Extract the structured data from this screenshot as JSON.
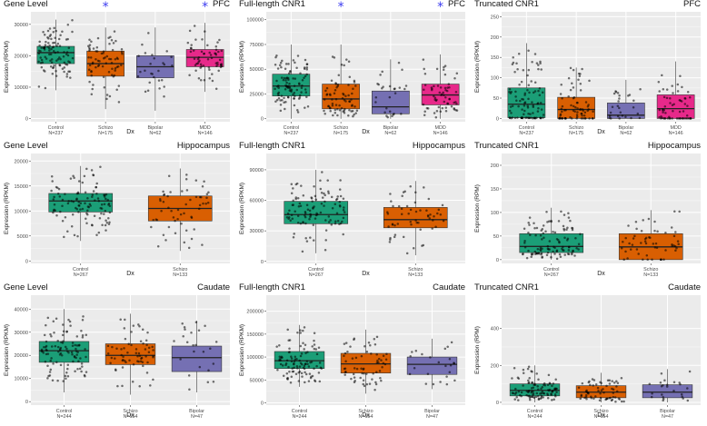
{
  "colors": {
    "panel_bg": "#ebebeb",
    "grid": "#ffffff",
    "point": "#000000",
    "asterisk": "#3a3af0",
    "Control": "#1b9e77",
    "Schizo": "#d95f02",
    "Bipolar": "#7570b3",
    "MDD": "#e7298a"
  },
  "ylabel_rpkm": "Expression (RPKM)",
  "ylabel_rpm": "Expression (RPM)",
  "xlabel": "Dx",
  "chart_data": [
    {
      "type": "box",
      "id": "pfc-gene",
      "title": "Gene Level",
      "region": "PFC",
      "ylabel": "Expression (RPKM)",
      "xlabel": "Dx",
      "ylim": [
        -1000,
        34000
      ],
      "yticks": [
        0,
        10000,
        20000,
        30000
      ],
      "ytick_labels": [
        "0",
        "10000",
        "20000",
        "30000"
      ],
      "groups": [
        {
          "name": "Control",
          "n_label": "N=237",
          "q1": 17500,
          "median": 21000,
          "q3": 23000,
          "lo": 9000,
          "hi": 31500,
          "sig": false
        },
        {
          "name": "Schizo",
          "n_label": "N=175",
          "q1": 13500,
          "median": 17500,
          "q3": 21500,
          "lo": 3000,
          "hi": 29000,
          "sig": true
        },
        {
          "name": "Bipolar",
          "n_label": "N=62",
          "q1": 13000,
          "median": 16500,
          "q3": 20000,
          "lo": 2500,
          "hi": 29000,
          "sig": false
        },
        {
          "name": "MDD",
          "n_label": "N=146",
          "q1": 16500,
          "median": 19500,
          "q3": 22000,
          "lo": 8500,
          "hi": 30500,
          "sig": true
        }
      ]
    },
    {
      "type": "box",
      "id": "pfc-full",
      "title": "Full-length CNR1",
      "region": "PFC",
      "ylabel": "Expression (RPKM)",
      "xlabel": "Dx",
      "ylim": [
        -3000,
        108000
      ],
      "yticks": [
        0,
        25000,
        50000,
        75000,
        100000
      ],
      "ytick_labels": [
        "0",
        "25000",
        "50000",
        "75000",
        "100000"
      ],
      "groups": [
        {
          "name": "Control",
          "n_label": "N=237",
          "q1": 23000,
          "median": 33000,
          "q3": 45000,
          "lo": 0,
          "hi": 75000,
          "sig": false
        },
        {
          "name": "Schizo",
          "n_label": "N=175",
          "q1": 10000,
          "median": 20000,
          "q3": 35000,
          "lo": 0,
          "hi": 75000,
          "sig": true
        },
        {
          "name": "Bipolar",
          "n_label": "N=62",
          "q1": 5000,
          "median": 12000,
          "q3": 28000,
          "lo": 0,
          "hi": 60000,
          "sig": false
        },
        {
          "name": "MDD",
          "n_label": "N=146",
          "q1": 14000,
          "median": 24000,
          "q3": 35000,
          "lo": 0,
          "hi": 65000,
          "sig": true
        }
      ]
    },
    {
      "type": "box",
      "id": "pfc-trunc",
      "title": "Truncated CNR1",
      "region": "PFC",
      "ylabel": "Expression (RPKM)",
      "xlabel": "Dx",
      "ylim": [
        -8,
        262
      ],
      "yticks": [
        0,
        50,
        100,
        150,
        200,
        250
      ],
      "ytick_labels": [
        "0",
        "50",
        "100",
        "150",
        "200",
        "250"
      ],
      "groups": [
        {
          "name": "Control",
          "n_label": "N=237",
          "q1": 2,
          "median": 35,
          "q3": 75,
          "lo": 0,
          "hi": 185,
          "sig": false
        },
        {
          "name": "Schizo",
          "n_label": "N=175",
          "q1": 0,
          "median": 22,
          "q3": 52,
          "lo": 0,
          "hi": 125,
          "sig": false
        },
        {
          "name": "Bipolar",
          "n_label": "N=62",
          "q1": 0,
          "median": 8,
          "q3": 38,
          "lo": 0,
          "hi": 95,
          "sig": false
        },
        {
          "name": "MDD",
          "n_label": "N=146",
          "q1": 0,
          "median": 24,
          "q3": 58,
          "lo": 0,
          "hi": 140,
          "sig": false
        }
      ]
    },
    {
      "type": "box",
      "id": "hip-gene",
      "title": "Gene Level",
      "region": "Hippocampus",
      "ylabel": "Expression (RPKM)",
      "xlabel": "Dx",
      "ylim": [
        -500,
        21500
      ],
      "yticks": [
        0,
        5000,
        10000,
        15000,
        20000
      ],
      "ytick_labels": [
        "0",
        "5000",
        "10000",
        "15000",
        "20000"
      ],
      "groups": [
        {
          "name": "Control",
          "n_label": "N=267",
          "q1": 9800,
          "median": 12000,
          "q3": 13500,
          "lo": 4000,
          "hi": 19000,
          "sig": false
        },
        {
          "name": "Schizo",
          "n_label": "N=133",
          "q1": 8000,
          "median": 10500,
          "q3": 13000,
          "lo": 2000,
          "hi": 18500,
          "sig": false
        }
      ]
    },
    {
      "type": "box",
      "id": "hip-full",
      "title": "Full-length CNR1",
      "region": "Hippocampus",
      "ylabel": "Expression (RPKM)",
      "xlabel": "Dx",
      "ylim": [
        -2000,
        106000
      ],
      "yticks": [
        0,
        30000,
        60000,
        90000
      ],
      "ytick_labels": [
        "0",
        "30000",
        "60000",
        "90000"
      ],
      "groups": [
        {
          "name": "Control",
          "n_label": "N=267",
          "q1": 37000,
          "median": 46000,
          "q3": 59000,
          "lo": 8000,
          "hi": 90000,
          "sig": false
        },
        {
          "name": "Schizo",
          "n_label": "N=133",
          "q1": 33000,
          "median": 41000,
          "q3": 53000,
          "lo": 6000,
          "hi": 79000,
          "sig": false
        }
      ]
    },
    {
      "type": "box",
      "id": "hip-trunc",
      "title": "Truncated CNR1",
      "region": "Hippocampus",
      "ylabel": "Expression (RPM)",
      "xlabel": "Dx",
      "ylim": [
        -8,
        225
      ],
      "yticks": [
        0,
        50,
        100,
        150,
        200
      ],
      "ytick_labels": [
        "0",
        "50",
        "100",
        "150",
        "200"
      ],
      "groups": [
        {
          "name": "Control",
          "n_label": "N=267",
          "q1": 15,
          "median": 28,
          "q3": 55,
          "lo": 0,
          "hi": 110,
          "sig": false
        },
        {
          "name": "Schizo",
          "n_label": "N=133",
          "q1": 0,
          "median": 27,
          "q3": 55,
          "lo": 0,
          "hi": 105,
          "sig": false
        }
      ]
    },
    {
      "type": "box",
      "id": "cau-gene",
      "title": "Gene Level",
      "region": "Caudate",
      "ylabel": "Expression (RPKM)",
      "xlabel": "Dx",
      "ylim": [
        -1500,
        46000
      ],
      "yticks": [
        0,
        10000,
        20000,
        30000,
        40000
      ],
      "ytick_labels": [
        "0",
        "10000",
        "20000",
        "30000",
        "40000"
      ],
      "groups": [
        {
          "name": "Control",
          "n_label": "N=244",
          "q1": 17000,
          "median": 22000,
          "q3": 26000,
          "lo": 4000,
          "hi": 40000,
          "sig": false
        },
        {
          "name": "Schizo",
          "n_label": "N=154",
          "q1": 16000,
          "median": 20000,
          "q3": 25000,
          "lo": 3000,
          "hi": 38000,
          "sig": false
        },
        {
          "name": "Bipolar",
          "n_label": "N=47",
          "q1": 13000,
          "median": 19000,
          "q3": 24000,
          "lo": 4000,
          "hi": 35000,
          "sig": false
        }
      ]
    },
    {
      "type": "box",
      "id": "cau-full",
      "title": "Full-length CNR1",
      "region": "Caudate",
      "ylabel": "Expression (RPKM)",
      "xlabel": "Dx",
      "ylim": [
        -5000,
        235000
      ],
      "yticks": [
        0,
        50000,
        100000,
        150000,
        200000
      ],
      "ytick_labels": [
        "0",
        "50000",
        "100000",
        "150000",
        "200000"
      ],
      "groups": [
        {
          "name": "Control",
          "n_label": "N=244",
          "q1": 75000,
          "median": 92000,
          "q3": 112000,
          "lo": 35000,
          "hi": 170000,
          "sig": false
        },
        {
          "name": "Schizo",
          "n_label": "N=154",
          "q1": 65000,
          "median": 85000,
          "q3": 108000,
          "lo": 20000,
          "hi": 160000,
          "sig": false
        },
        {
          "name": "Bipolar",
          "n_label": "N=47",
          "q1": 62000,
          "median": 84000,
          "q3": 100000,
          "lo": 30000,
          "hi": 140000,
          "sig": false
        }
      ]
    },
    {
      "type": "box",
      "id": "cau-trunc",
      "title": "Truncated CNR1",
      "region": "Caudate",
      "ylabel": "Expression (RPM)",
      "xlabel": "Dx",
      "ylim": [
        -15,
        580
      ],
      "yticks": [
        0,
        200,
        400
      ],
      "ytick_labels": [
        "0",
        "200",
        "400"
      ],
      "groups": [
        {
          "name": "Control",
          "n_label": "N=244",
          "q1": 35,
          "median": 65,
          "q3": 100,
          "lo": 0,
          "hi": 200,
          "sig": false
        },
        {
          "name": "Schizo",
          "n_label": "N=154",
          "q1": 25,
          "median": 55,
          "q3": 90,
          "lo": 0,
          "hi": 160,
          "sig": false
        },
        {
          "name": "Bipolar",
          "n_label": "N=47",
          "q1": 25,
          "median": 55,
          "q3": 95,
          "lo": 0,
          "hi": 180,
          "sig": false
        }
      ]
    }
  ]
}
